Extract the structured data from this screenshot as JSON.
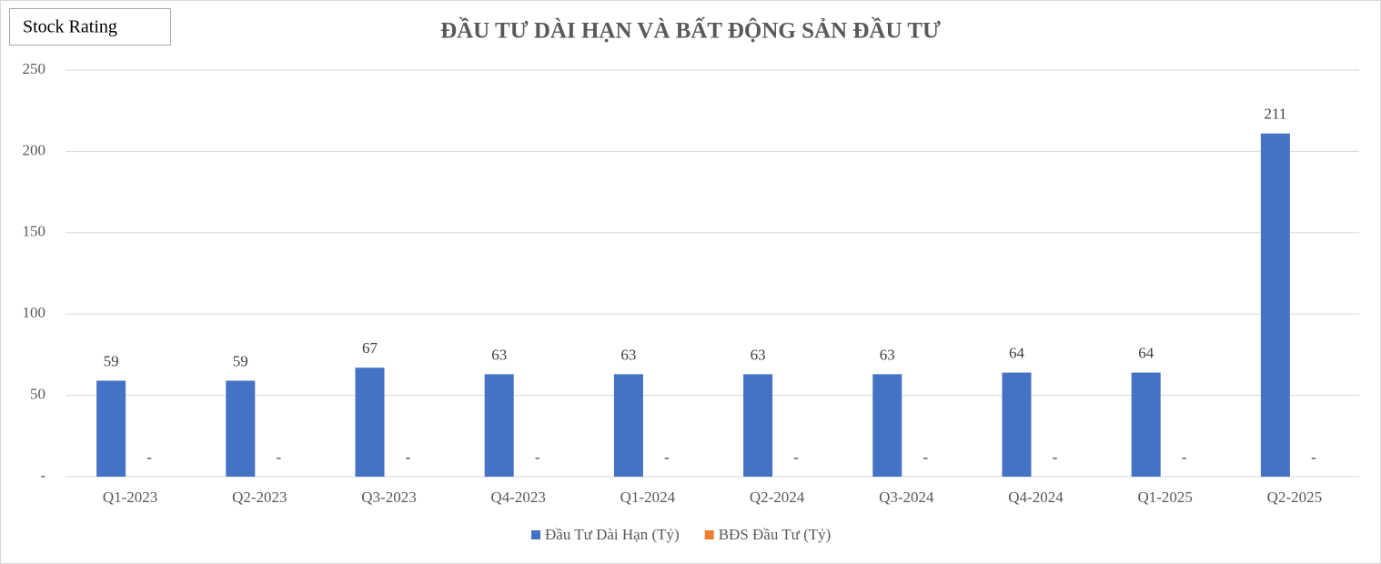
{
  "badge": "Stock Rating",
  "chart_data": {
    "type": "bar",
    "title": "ĐẦU TƯ DÀI HẠN VÀ BẤT ĐỘNG SẢN ĐẦU TƯ",
    "categories": [
      "Q1-2023",
      "Q2-2023",
      "Q3-2023",
      "Q4-2023",
      "Q1-2024",
      "Q2-2024",
      "Q3-2024",
      "Q4-2024",
      "Q1-2025",
      "Q2-2025"
    ],
    "series": [
      {
        "name": "Đầu Tư Dài Hạn (Tỷ)",
        "color": "#4472c4",
        "values": [
          59,
          59,
          67,
          63,
          63,
          63,
          63,
          64,
          64,
          211
        ]
      },
      {
        "name": "BĐS Đầu Tư (Tỷ)",
        "color": "#ed7d31",
        "values": [
          0,
          0,
          0,
          0,
          0,
          0,
          0,
          0,
          0,
          0
        ],
        "value_labels": [
          "-",
          "-",
          "-",
          "-",
          "-",
          "-",
          "-",
          "-",
          "-",
          "-"
        ]
      }
    ],
    "ylim": [
      0,
      250
    ],
    "yticks": [
      {
        "value": 0,
        "label": "-"
      },
      50,
      100,
      150,
      200,
      250
    ],
    "grid": true,
    "legend": "bottom"
  }
}
